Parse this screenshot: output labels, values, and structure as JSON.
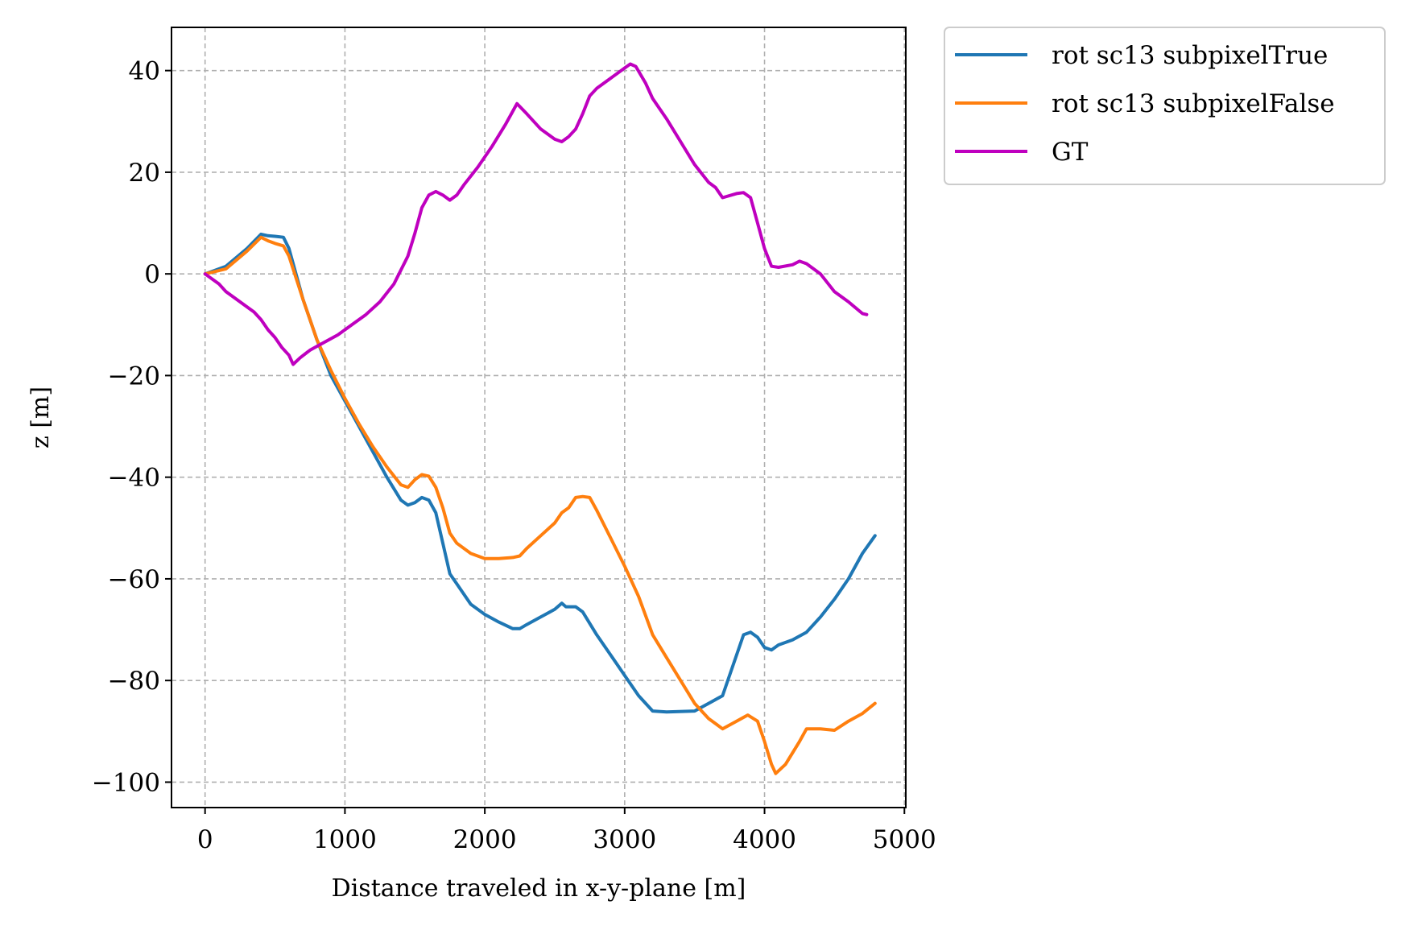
{
  "chart_data": {
    "type": "line",
    "xlabel": "Distance traveled in x-y-plane [m]",
    "ylabel": "z [m]",
    "xlim": [
      -240,
      5010
    ],
    "ylim": [
      -105,
      48.5
    ],
    "xticks": [
      0,
      1000,
      2000,
      3000,
      4000,
      5000
    ],
    "yticks": [
      40,
      20,
      0,
      -20,
      -40,
      -60,
      -80,
      -100
    ],
    "grid": true,
    "legend_position": "outside-top-right",
    "series": [
      {
        "name": "rot sc13 subpixelTrue",
        "color": "#1f77b4",
        "points": [
          [
            0,
            0
          ],
          [
            150,
            1.5
          ],
          [
            300,
            5
          ],
          [
            400,
            7.8
          ],
          [
            450,
            7.5
          ],
          [
            500,
            7.4
          ],
          [
            560,
            7.2
          ],
          [
            600,
            5
          ],
          [
            700,
            -5
          ],
          [
            800,
            -13
          ],
          [
            900,
            -20
          ],
          [
            1000,
            -25
          ],
          [
            1100,
            -30
          ],
          [
            1200,
            -35
          ],
          [
            1300,
            -40
          ],
          [
            1400,
            -44.5
          ],
          [
            1450,
            -45.5
          ],
          [
            1500,
            -45
          ],
          [
            1550,
            -44
          ],
          [
            1600,
            -44.5
          ],
          [
            1650,
            -47
          ],
          [
            1700,
            -53
          ],
          [
            1750,
            -59
          ],
          [
            1800,
            -61
          ],
          [
            1900,
            -65
          ],
          [
            2000,
            -67
          ],
          [
            2100,
            -68.5
          ],
          [
            2200,
            -69.8
          ],
          [
            2250,
            -69.8
          ],
          [
            2300,
            -69
          ],
          [
            2400,
            -67.5
          ],
          [
            2500,
            -66
          ],
          [
            2550,
            -64.8
          ],
          [
            2580,
            -65.5
          ],
          [
            2650,
            -65.5
          ],
          [
            2700,
            -66.5
          ],
          [
            2800,
            -71
          ],
          [
            2900,
            -75
          ],
          [
            3000,
            -79
          ],
          [
            3100,
            -83
          ],
          [
            3200,
            -86
          ],
          [
            3300,
            -86.2
          ],
          [
            3500,
            -86
          ],
          [
            3600,
            -84.5
          ],
          [
            3700,
            -83
          ],
          [
            3800,
            -75
          ],
          [
            3850,
            -71
          ],
          [
            3900,
            -70.5
          ],
          [
            3950,
            -71.5
          ],
          [
            4000,
            -73.5
          ],
          [
            4050,
            -74
          ],
          [
            4100,
            -73
          ],
          [
            4200,
            -72
          ],
          [
            4300,
            -70.5
          ],
          [
            4400,
            -67.5
          ],
          [
            4500,
            -64
          ],
          [
            4600,
            -60
          ],
          [
            4700,
            -55
          ],
          [
            4790,
            -51.5
          ]
        ]
      },
      {
        "name": "rot sc13 subpixelFalse",
        "color": "#ff7f0e",
        "points": [
          [
            0,
            0
          ],
          [
            150,
            1
          ],
          [
            300,
            4.5
          ],
          [
            400,
            7.2
          ],
          [
            450,
            6.5
          ],
          [
            500,
            6
          ],
          [
            560,
            5.5
          ],
          [
            600,
            3.5
          ],
          [
            700,
            -5
          ],
          [
            800,
            -13
          ],
          [
            900,
            -19
          ],
          [
            1000,
            -24.5
          ],
          [
            1100,
            -29.5
          ],
          [
            1200,
            -34
          ],
          [
            1300,
            -38
          ],
          [
            1400,
            -41.5
          ],
          [
            1450,
            -42
          ],
          [
            1500,
            -40.5
          ],
          [
            1550,
            -39.5
          ],
          [
            1600,
            -39.8
          ],
          [
            1650,
            -42
          ],
          [
            1700,
            -46
          ],
          [
            1750,
            -51
          ],
          [
            1800,
            -53
          ],
          [
            1900,
            -55
          ],
          [
            2000,
            -56
          ],
          [
            2100,
            -56
          ],
          [
            2200,
            -55.8
          ],
          [
            2250,
            -55.5
          ],
          [
            2300,
            -54
          ],
          [
            2400,
            -51.5
          ],
          [
            2500,
            -49
          ],
          [
            2550,
            -47
          ],
          [
            2600,
            -46
          ],
          [
            2650,
            -44
          ],
          [
            2700,
            -43.8
          ],
          [
            2750,
            -44
          ],
          [
            2800,
            -46.5
          ],
          [
            2900,
            -52
          ],
          [
            3000,
            -57.5
          ],
          [
            3100,
            -63.5
          ],
          [
            3200,
            -71
          ],
          [
            3300,
            -75.5
          ],
          [
            3400,
            -80
          ],
          [
            3500,
            -84.5
          ],
          [
            3600,
            -87.5
          ],
          [
            3650,
            -88.5
          ],
          [
            3700,
            -89.5
          ],
          [
            3800,
            -88
          ],
          [
            3880,
            -86.8
          ],
          [
            3950,
            -88
          ],
          [
            4000,
            -92
          ],
          [
            4050,
            -96.5
          ],
          [
            4080,
            -98.3
          ],
          [
            4150,
            -96.5
          ],
          [
            4250,
            -92
          ],
          [
            4300,
            -89.5
          ],
          [
            4400,
            -89.5
          ],
          [
            4500,
            -89.8
          ],
          [
            4600,
            -88
          ],
          [
            4700,
            -86.5
          ],
          [
            4790,
            -84.5
          ]
        ]
      },
      {
        "name": "GT",
        "color": "#bf00bf",
        "points": [
          [
            0,
            0
          ],
          [
            100,
            -2
          ],
          [
            150,
            -3.5
          ],
          [
            250,
            -5.5
          ],
          [
            350,
            -7.5
          ],
          [
            400,
            -9
          ],
          [
            450,
            -11
          ],
          [
            500,
            -12.5
          ],
          [
            550,
            -14.5
          ],
          [
            600,
            -16
          ],
          [
            630,
            -17.8
          ],
          [
            680,
            -16.5
          ],
          [
            750,
            -15
          ],
          [
            850,
            -13.5
          ],
          [
            950,
            -12
          ],
          [
            1050,
            -10
          ],
          [
            1150,
            -8
          ],
          [
            1250,
            -5.5
          ],
          [
            1350,
            -2
          ],
          [
            1450,
            3.5
          ],
          [
            1500,
            8
          ],
          [
            1550,
            13
          ],
          [
            1600,
            15.5
          ],
          [
            1650,
            16.2
          ],
          [
            1700,
            15.5
          ],
          [
            1750,
            14.5
          ],
          [
            1800,
            15.5
          ],
          [
            1850,
            17.5
          ],
          [
            1950,
            21
          ],
          [
            2050,
            25
          ],
          [
            2150,
            29.5
          ],
          [
            2230,
            33.5
          ],
          [
            2300,
            31.5
          ],
          [
            2400,
            28.5
          ],
          [
            2500,
            26.5
          ],
          [
            2550,
            26
          ],
          [
            2600,
            27
          ],
          [
            2650,
            28.5
          ],
          [
            2700,
            31.5
          ],
          [
            2750,
            35
          ],
          [
            2800,
            36.5
          ],
          [
            2900,
            38.5
          ],
          [
            3000,
            40.5
          ],
          [
            3040,
            41.3
          ],
          [
            3080,
            40.8
          ],
          [
            3150,
            37.5
          ],
          [
            3200,
            34.5
          ],
          [
            3300,
            30.5
          ],
          [
            3400,
            26
          ],
          [
            3500,
            21.5
          ],
          [
            3600,
            18
          ],
          [
            3650,
            17
          ],
          [
            3700,
            15
          ],
          [
            3800,
            15.8
          ],
          [
            3850,
            16
          ],
          [
            3900,
            15
          ],
          [
            3950,
            10
          ],
          [
            4000,
            5
          ],
          [
            4050,
            1.5
          ],
          [
            4100,
            1.3
          ],
          [
            4200,
            1.8
          ],
          [
            4250,
            2.5
          ],
          [
            4300,
            2
          ],
          [
            4400,
            0
          ],
          [
            4500,
            -3.5
          ],
          [
            4600,
            -5.5
          ],
          [
            4700,
            -7.8
          ],
          [
            4730,
            -8
          ]
        ]
      }
    ]
  }
}
